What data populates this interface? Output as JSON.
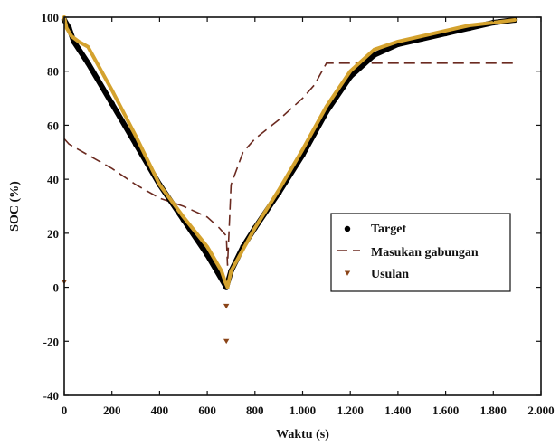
{
  "chart_data": {
    "type": "line",
    "xlabel": "Waktu (s)",
    "ylabel": "SOC (%)",
    "xlim": [
      0,
      2000
    ],
    "ylim": [
      -40,
      100
    ],
    "xticks": [
      0,
      200,
      400,
      600,
      800,
      1000,
      1200,
      1400,
      1600,
      1800,
      2000
    ],
    "xtick_labels": [
      "0",
      "200",
      "400",
      "600",
      "800",
      "1.000",
      "1.200",
      "1.400",
      "1.600",
      "1.800",
      "2.000"
    ],
    "yticks": [
      -40,
      -20,
      0,
      20,
      40,
      60,
      80,
      100
    ],
    "ytick_labels": [
      "-40",
      "-20",
      "0",
      "20",
      "40",
      "60",
      "80",
      "100"
    ],
    "grid": false,
    "legend_position": "center-right",
    "series": [
      {
        "name": "Target",
        "style": "dot",
        "color": "#000000",
        "x": [
          0,
          20,
          40,
          100,
          200,
          300,
          400,
          500,
          600,
          680,
          700,
          750,
          800,
          900,
          1000,
          1100,
          1200,
          1300,
          1400,
          1500,
          1600,
          1700,
          1800,
          1890
        ],
        "y": [
          99,
          96,
          91,
          83,
          68,
          53,
          38,
          25,
          12,
          0,
          6,
          15,
          22,
          35,
          49,
          65,
          78,
          86,
          90,
          92,
          94,
          96,
          98,
          99
        ]
      },
      {
        "name": "Masukan gabungan",
        "style": "dashed",
        "color": "#6b2a20",
        "x": [
          0,
          20,
          100,
          200,
          300,
          400,
          500,
          600,
          650,
          680,
          685,
          700,
          750,
          800,
          900,
          1000,
          1050,
          1100,
          1150,
          1200,
          1300,
          1400,
          1500,
          1600,
          1700,
          1800,
          1890
        ],
        "y": [
          55,
          53,
          49,
          44,
          38,
          33,
          30,
          26,
          22,
          19,
          8,
          38,
          50,
          55,
          62,
          70,
          75,
          83,
          83,
          83,
          83,
          83,
          83,
          83,
          83,
          83,
          83
        ]
      },
      {
        "name": "Usulan",
        "style": "triangle",
        "color": "#d4a22e",
        "marker_color": "#8a4418",
        "x": [
          0,
          10,
          30,
          60,
          100,
          200,
          300,
          400,
          500,
          600,
          660,
          675,
          685,
          700,
          750,
          800,
          900,
          1000,
          1100,
          1200,
          1300,
          1400,
          1500,
          1600,
          1700,
          1800,
          1890
        ],
        "y": [
          100,
          96,
          93,
          91,
          89,
          73,
          56,
          38,
          26,
          15,
          6,
          2,
          0,
          6,
          14,
          22,
          36,
          51,
          67,
          80,
          88,
          91,
          93,
          95,
          97,
          98,
          99
        ]
      }
    ],
    "outlier_markers": [
      {
        "series": "Usulan",
        "x": 0,
        "y": 2
      },
      {
        "series": "Usulan",
        "x": 680,
        "y": -7
      },
      {
        "series": "Usulan",
        "x": 680,
        "y": -20
      }
    ]
  }
}
